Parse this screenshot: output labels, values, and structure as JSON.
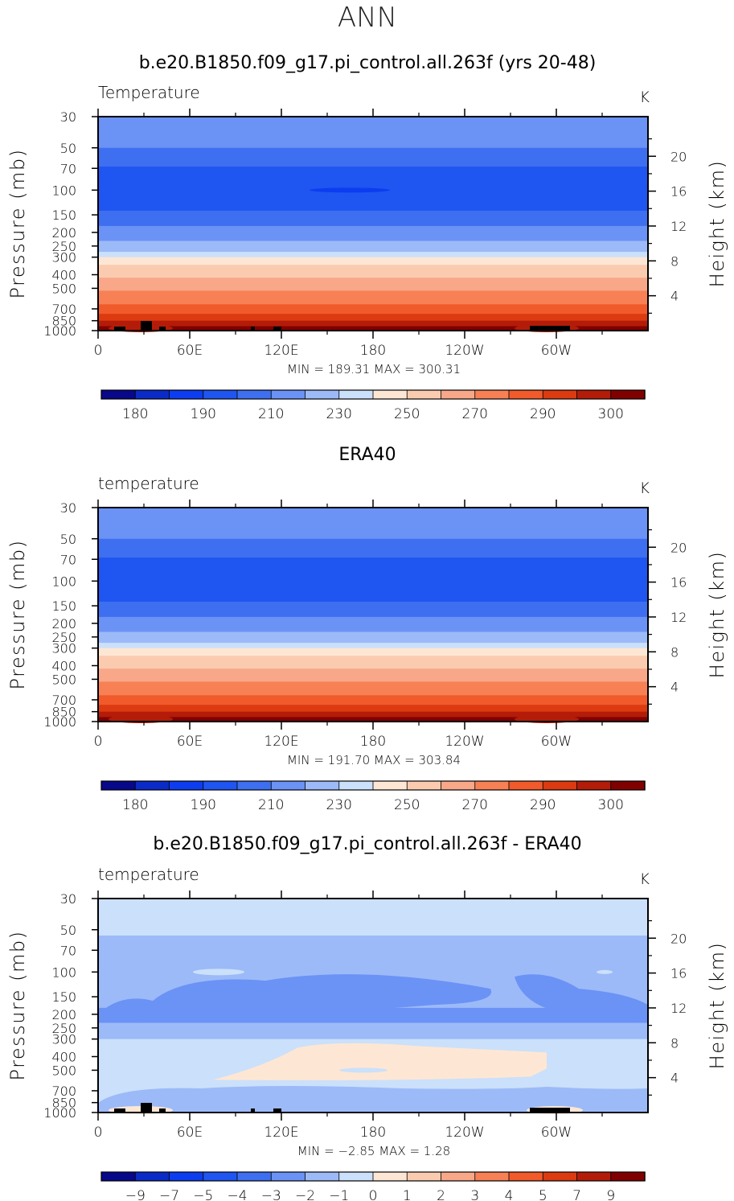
{
  "figure_title": "ANN",
  "chart_data": [
    {
      "type": "heatmap",
      "title": "b.e20.B1850.f09_g17.pi_control.all.263f (yrs 20-48)",
      "variable": "Temperature",
      "units": "K",
      "ylabel": "Pressure (mb)",
      "y2label": "Height (km)",
      "x_ticks": [
        "0",
        "60E",
        "120E",
        "180",
        "120W",
        "60W"
      ],
      "x_tick_values": [
        0,
        60,
        120,
        180,
        240,
        300
      ],
      "xlim": [
        0,
        360
      ],
      "y_ticks": [
        "30",
        "50",
        "70",
        "100",
        "150",
        "200",
        "250",
        "300",
        "400",
        "500",
        "700",
        "850",
        "1000"
      ],
      "y_tick_values": [
        30,
        50,
        70,
        100,
        150,
        200,
        250,
        300,
        400,
        500,
        700,
        850,
        1000
      ],
      "ylim": [
        30,
        1000
      ],
      "y2_ticks": [
        "4",
        "8",
        "12",
        "16",
        "20"
      ],
      "y2_tick_values": [
        4,
        8,
        12,
        16,
        20
      ],
      "min_max_text": "MIN =  189.31   MAX =  300.31",
      "min": 189.31,
      "max": 300.31,
      "colorbar_labels": [
        "180",
        "190",
        "210",
        "230",
        "250",
        "270",
        "290",
        "300"
      ],
      "colorbar_label_slots": [
        1,
        3,
        5,
        7,
        9,
        11,
        13,
        15
      ]
    },
    {
      "type": "heatmap",
      "title": "ERA40",
      "variable": "temperature",
      "units": "K",
      "ylabel": "Pressure (mb)",
      "y2label": "Height (km)",
      "x_ticks": [
        "0",
        "60E",
        "120E",
        "180",
        "120W",
        "60W"
      ],
      "x_tick_values": [
        0,
        60,
        120,
        180,
        240,
        300
      ],
      "xlim": [
        0,
        360
      ],
      "y_ticks": [
        "30",
        "50",
        "70",
        "100",
        "150",
        "200",
        "250",
        "300",
        "400",
        "500",
        "700",
        "850",
        "1000"
      ],
      "y_tick_values": [
        30,
        50,
        70,
        100,
        150,
        200,
        250,
        300,
        400,
        500,
        700,
        850,
        1000
      ],
      "ylim": [
        30,
        1000
      ],
      "y2_ticks": [
        "4",
        "8",
        "12",
        "16",
        "20"
      ],
      "y2_tick_values": [
        4,
        8,
        12,
        16,
        20
      ],
      "min_max_text": "MIN =  191.70   MAX =  303.84",
      "min": 191.7,
      "max": 303.84,
      "colorbar_labels": [
        "180",
        "190",
        "210",
        "230",
        "250",
        "270",
        "290",
        "300"
      ],
      "colorbar_label_slots": [
        1,
        3,
        5,
        7,
        9,
        11,
        13,
        15
      ]
    },
    {
      "type": "heatmap",
      "title": "b.e20.B1850.f09_g17.pi_control.all.263f - ERA40",
      "variable": "temperature",
      "units": "K",
      "ylabel": "Pressure (mb)",
      "y2label": "Height (km)",
      "x_ticks": [
        "0",
        "60E",
        "120E",
        "180",
        "120W",
        "60W"
      ],
      "x_tick_values": [
        0,
        60,
        120,
        180,
        240,
        300
      ],
      "xlim": [
        0,
        360
      ],
      "y_ticks": [
        "30",
        "50",
        "70",
        "100",
        "150",
        "200",
        "250",
        "300",
        "400",
        "500",
        "700",
        "850",
        "1000"
      ],
      "y_tick_values": [
        30,
        50,
        70,
        100,
        150,
        200,
        250,
        300,
        400,
        500,
        700,
        850,
        1000
      ],
      "ylim": [
        30,
        1000
      ],
      "y2_ticks": [
        "4",
        "8",
        "12",
        "16",
        "20"
      ],
      "y2_tick_values": [
        4,
        8,
        12,
        16,
        20
      ],
      "min_max_text": "MIN =     −2.85   MAX =      1.28",
      "min": -2.85,
      "max": 1.28,
      "colorbar_labels": [
        "−9",
        "−7",
        "−5",
        "−4",
        "−3",
        "−2",
        "−1",
        "0",
        "1",
        "2",
        "3",
        "4",
        "5",
        "7",
        "9"
      ],
      "colorbar_label_slots": [
        1,
        2,
        3,
        4,
        5,
        6,
        7,
        8,
        9,
        10,
        11,
        12,
        13,
        14,
        15
      ]
    }
  ],
  "colorbar_colors": [
    "#08088a",
    "#0b2bc8",
    "#0d3df0",
    "#1f55f0",
    "#3e6ff0",
    "#6b92f5",
    "#9cbaf8",
    "#cbe0fa",
    "#fde7d4",
    "#fbcbb0",
    "#f8a888",
    "#f78055",
    "#f15a2a",
    "#dc3a10",
    "#b31c08",
    "#800000"
  ]
}
